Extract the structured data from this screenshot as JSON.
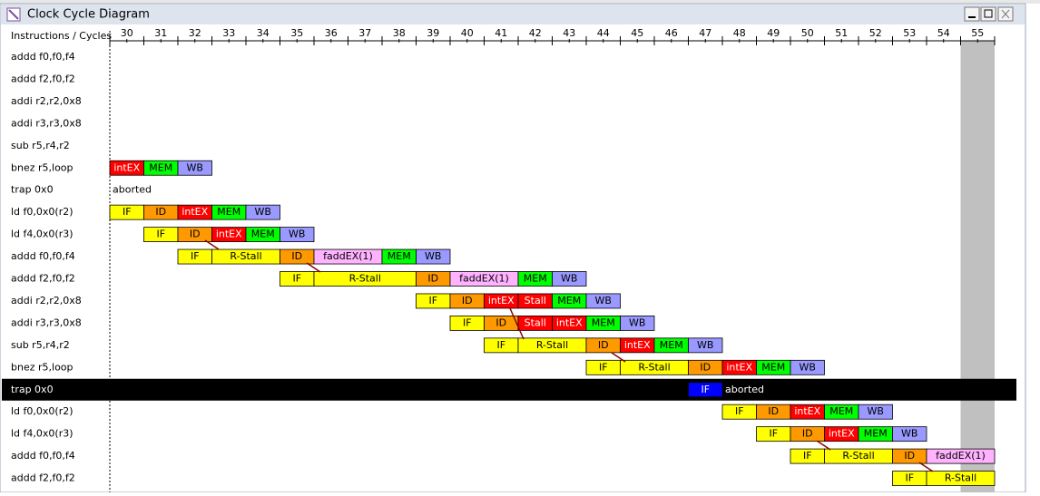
{
  "window": {
    "title": "Clock Cycle Diagram"
  },
  "header": {
    "label": "Instructions / Cycles",
    "cycles": [
      30,
      31,
      32,
      33,
      34,
      35,
      36,
      37,
      38,
      39,
      40,
      41,
      42,
      43,
      44,
      45,
      46,
      47,
      48,
      49,
      50,
      51,
      52,
      53,
      54,
      55
    ],
    "current_cycle": 55
  },
  "stage_colors": {
    "IF": "#ffff00",
    "ID": "#ff9900",
    "intEX": "#ff0000",
    "MEM": "#00ff00",
    "WB": "#9999ff",
    "R-Stall": "#ffff00",
    "Stall": "#ff0000",
    "faddEX(1)": "#ffb3ff"
  },
  "rows": [
    {
      "label": "addd f0,f0,f4",
      "stages": []
    },
    {
      "label": "addd f2,f0,f2",
      "stages": []
    },
    {
      "label": "addi r2,r2,0x8",
      "stages": []
    },
    {
      "label": "addi r3,r3,0x8",
      "stages": []
    },
    {
      "label": "sub r5,r4,r2",
      "stages": []
    },
    {
      "label": "bnez r5,loop",
      "start": 30,
      "stages": [
        {
          "label": "intEX"
        },
        {
          "label": "MEM"
        },
        {
          "label": "WB"
        }
      ]
    },
    {
      "label": "trap 0x0",
      "start": 30,
      "stages": [],
      "note": "aborted"
    },
    {
      "label": "ld f0,0x0(r2)",
      "start": 30,
      "stages": [
        {
          "label": "IF"
        },
        {
          "label": "ID"
        },
        {
          "label": "intEX"
        },
        {
          "label": "MEM"
        },
        {
          "label": "WB"
        }
      ]
    },
    {
      "label": "ld f4,0x0(r3)",
      "start": 31,
      "stages": [
        {
          "label": "IF"
        },
        {
          "label": "ID"
        },
        {
          "label": "intEX"
        },
        {
          "label": "MEM"
        },
        {
          "label": "WB"
        }
      ]
    },
    {
      "label": "addd f0,f0,f4",
      "start": 32,
      "stages": [
        {
          "label": "IF"
        },
        {
          "label": "R-Stall",
          "span": 2
        },
        {
          "label": "ID"
        },
        {
          "label": "faddEX(1)",
          "span": 2
        },
        {
          "label": "MEM"
        },
        {
          "label": "WB"
        }
      ]
    },
    {
      "label": "addd f2,f0,f2",
      "start": 35,
      "stages": [
        {
          "label": "IF"
        },
        {
          "label": "R-Stall",
          "span": 3
        },
        {
          "label": "ID"
        },
        {
          "label": "faddEX(1)",
          "span": 2
        },
        {
          "label": "MEM"
        },
        {
          "label": "WB"
        }
      ]
    },
    {
      "label": "addi r2,r2,0x8",
      "start": 39,
      "stages": [
        {
          "label": "IF"
        },
        {
          "label": "ID"
        },
        {
          "label": "intEX"
        },
        {
          "label": "Stall"
        },
        {
          "label": "MEM"
        },
        {
          "label": "WB"
        }
      ]
    },
    {
      "label": "addi r3,r3,0x8",
      "start": 40,
      "stages": [
        {
          "label": "IF"
        },
        {
          "label": "ID"
        },
        {
          "label": "Stall"
        },
        {
          "label": "intEX"
        },
        {
          "label": "MEM"
        },
        {
          "label": "WB"
        }
      ]
    },
    {
      "label": "sub r5,r4,r2",
      "start": 41,
      "stages": [
        {
          "label": "IF"
        },
        {
          "label": "R-Stall",
          "span": 2
        },
        {
          "label": "ID"
        },
        {
          "label": "intEX"
        },
        {
          "label": "MEM"
        },
        {
          "label": "WB"
        }
      ]
    },
    {
      "label": "bnez r5,loop",
      "start": 44,
      "stages": [
        {
          "label": "IF"
        },
        {
          "label": "R-Stall",
          "span": 2
        },
        {
          "label": "ID"
        },
        {
          "label": "intEX"
        },
        {
          "label": "MEM"
        },
        {
          "label": "WB"
        }
      ]
    },
    {
      "label": "trap 0x0",
      "start": 47,
      "highlight": true,
      "stages": [
        {
          "label": "IF",
          "color": "#0000ff"
        }
      ],
      "note": "aborted"
    },
    {
      "label": "ld f0,0x0(r2)",
      "start": 48,
      "stages": [
        {
          "label": "IF"
        },
        {
          "label": "ID"
        },
        {
          "label": "intEX"
        },
        {
          "label": "MEM"
        },
        {
          "label": "WB"
        }
      ]
    },
    {
      "label": "ld f4,0x0(r3)",
      "start": 49,
      "stages": [
        {
          "label": "IF"
        },
        {
          "label": "ID"
        },
        {
          "label": "intEX"
        },
        {
          "label": "MEM"
        },
        {
          "label": "WB"
        }
      ]
    },
    {
      "label": "addd f0,f0,f4",
      "start": 50,
      "stages": [
        {
          "label": "IF"
        },
        {
          "label": "R-Stall",
          "span": 2
        },
        {
          "label": "ID"
        },
        {
          "label": "faddEX(1)",
          "span": 2
        }
      ]
    },
    {
      "label": "addd f2,f0,f2",
      "start": 53,
      "stages": [
        {
          "label": "IF"
        },
        {
          "label": "R-Stall",
          "span": 2
        }
      ]
    }
  ]
}
